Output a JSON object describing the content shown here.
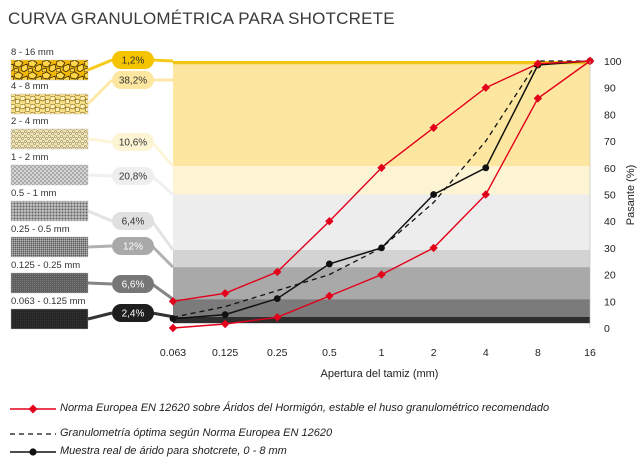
{
  "title": "CURVA GRANULOMÉTRICA PARA SHOTCRETE",
  "colors": {
    "norma": "#e3001b",
    "muestra": "#111111",
    "optima": "#111111",
    "highlight_top": "#f0c419"
  },
  "fractions": [
    {
      "range": "8 - 16 mm",
      "percent": "1,2%",
      "value": 1.2,
      "swatch": "gravel-yellow",
      "band_color": "#f5c400",
      "badge_color": "#f5c400",
      "badge_text_color": "#333333"
    },
    {
      "range": "4 - 8 mm",
      "percent": "38,2%",
      "value": 38.2,
      "swatch": "gravel-pale",
      "band_color": "#fde6a0",
      "badge_color": "#fde6a0",
      "badge_text_color": "#333333"
    },
    {
      "range": "2 - 4 mm",
      "percent": "10,6%",
      "value": 10.6,
      "swatch": "gravel-cream",
      "band_color": "#fdf4d4",
      "badge_color": "#fdf4d4",
      "badge_text_color": "#333333"
    },
    {
      "range": "1 - 2 mm",
      "percent": "20,8%",
      "value": 20.8,
      "swatch": "sand-coarse",
      "band_color": "#ededed",
      "badge_color": "#eeeeee",
      "badge_text_color": "#333333"
    },
    {
      "range": "0.5 - 1 mm",
      "percent": "6,4%",
      "value": 6.4,
      "swatch": "sand-medium",
      "band_color": "#d3d3d3",
      "badge_color": "#e0e0e0",
      "badge_text_color": "#333333"
    },
    {
      "range": "0.25 - 0.5 mm",
      "percent": "12%",
      "value": 12,
      "swatch": "sand-fine",
      "band_color": "#a9a9a9",
      "badge_color": "#a9a9a9",
      "badge_text_color": "#ffffff"
    },
    {
      "range": "0.125 - 0.25 mm",
      "percent": "6,6%",
      "value": 6.6,
      "swatch": "sand-very-fine",
      "band_color": "#7b7b7b",
      "badge_color": "#777777",
      "badge_text_color": "#ffffff"
    },
    {
      "range": "0.063 - 0.125 mm",
      "percent": "2,4%",
      "value": 2.4,
      "swatch": "filler",
      "band_color": "#2e2e2e",
      "badge_color": "#1e1e1e",
      "badge_text_color": "#ffffff"
    }
  ],
  "chart_data": {
    "type": "line",
    "x_categories": [
      "0.063",
      "0.125",
      "0.25",
      "0.5",
      "1",
      "2",
      "4",
      "8",
      "16"
    ],
    "xlabel": "Apertura del tamiz (mm)",
    "ylabel": "Pasante (%)",
    "ylim": [
      0,
      100
    ],
    "yticks": [
      0,
      10,
      20,
      30,
      40,
      50,
      60,
      70,
      80,
      90,
      100
    ],
    "grid": false,
    "series": [
      {
        "name": "Norma Europea EN 12620 sobre Áridos del Hormigón, estable el huso granulométrico recomendado",
        "style": "red-diamond-upper",
        "x": [
          "0.063",
          "0.125",
          "0.25",
          "0.5",
          "1",
          "2",
          "4",
          "8",
          "16"
        ],
        "values": [
          10,
          13,
          21,
          40,
          60,
          75,
          90,
          99,
          100
        ]
      },
      {
        "name": "",
        "style": "red-diamond-lower",
        "x": [
          "0.063",
          "0.125",
          "0.25",
          "0.5",
          "1",
          "2",
          "4",
          "8",
          "16"
        ],
        "values": [
          0,
          1.5,
          4,
          12,
          20,
          30,
          50,
          86,
          100
        ]
      },
      {
        "name": "Granulometría óptima según Norma Europea EN 12620",
        "style": "dashed",
        "x": [
          "0.063",
          "0.125",
          "0.25",
          "0.5",
          "1",
          "2",
          "4",
          "8",
          "16"
        ],
        "values": [
          4,
          8,
          14,
          20,
          30,
          47,
          70,
          100,
          100
        ]
      },
      {
        "name": "Muestra real de árido para shotcrete, 0 - 8 mm",
        "style": "black-dot",
        "x": [
          "0.063",
          "0.125",
          "0.25",
          "0.5",
          "1",
          "2",
          "4",
          "8",
          "16"
        ],
        "values": [
          3.5,
          5,
          11,
          24,
          30,
          50,
          60,
          98.5,
          100
        ]
      }
    ]
  },
  "legend": [
    {
      "text": "Norma Europea EN 12620 sobre Áridos del Hormigón, estable el huso granulométrico recomendado",
      "marker": "red-diamond-line"
    },
    {
      "text": "Granulometría óptima según Norma Europea EN 12620",
      "marker": "dashed-line"
    },
    {
      "text": "Muestra real de árido para shotcrete, 0 - 8 mm",
      "marker": "black-dot-line"
    }
  ]
}
